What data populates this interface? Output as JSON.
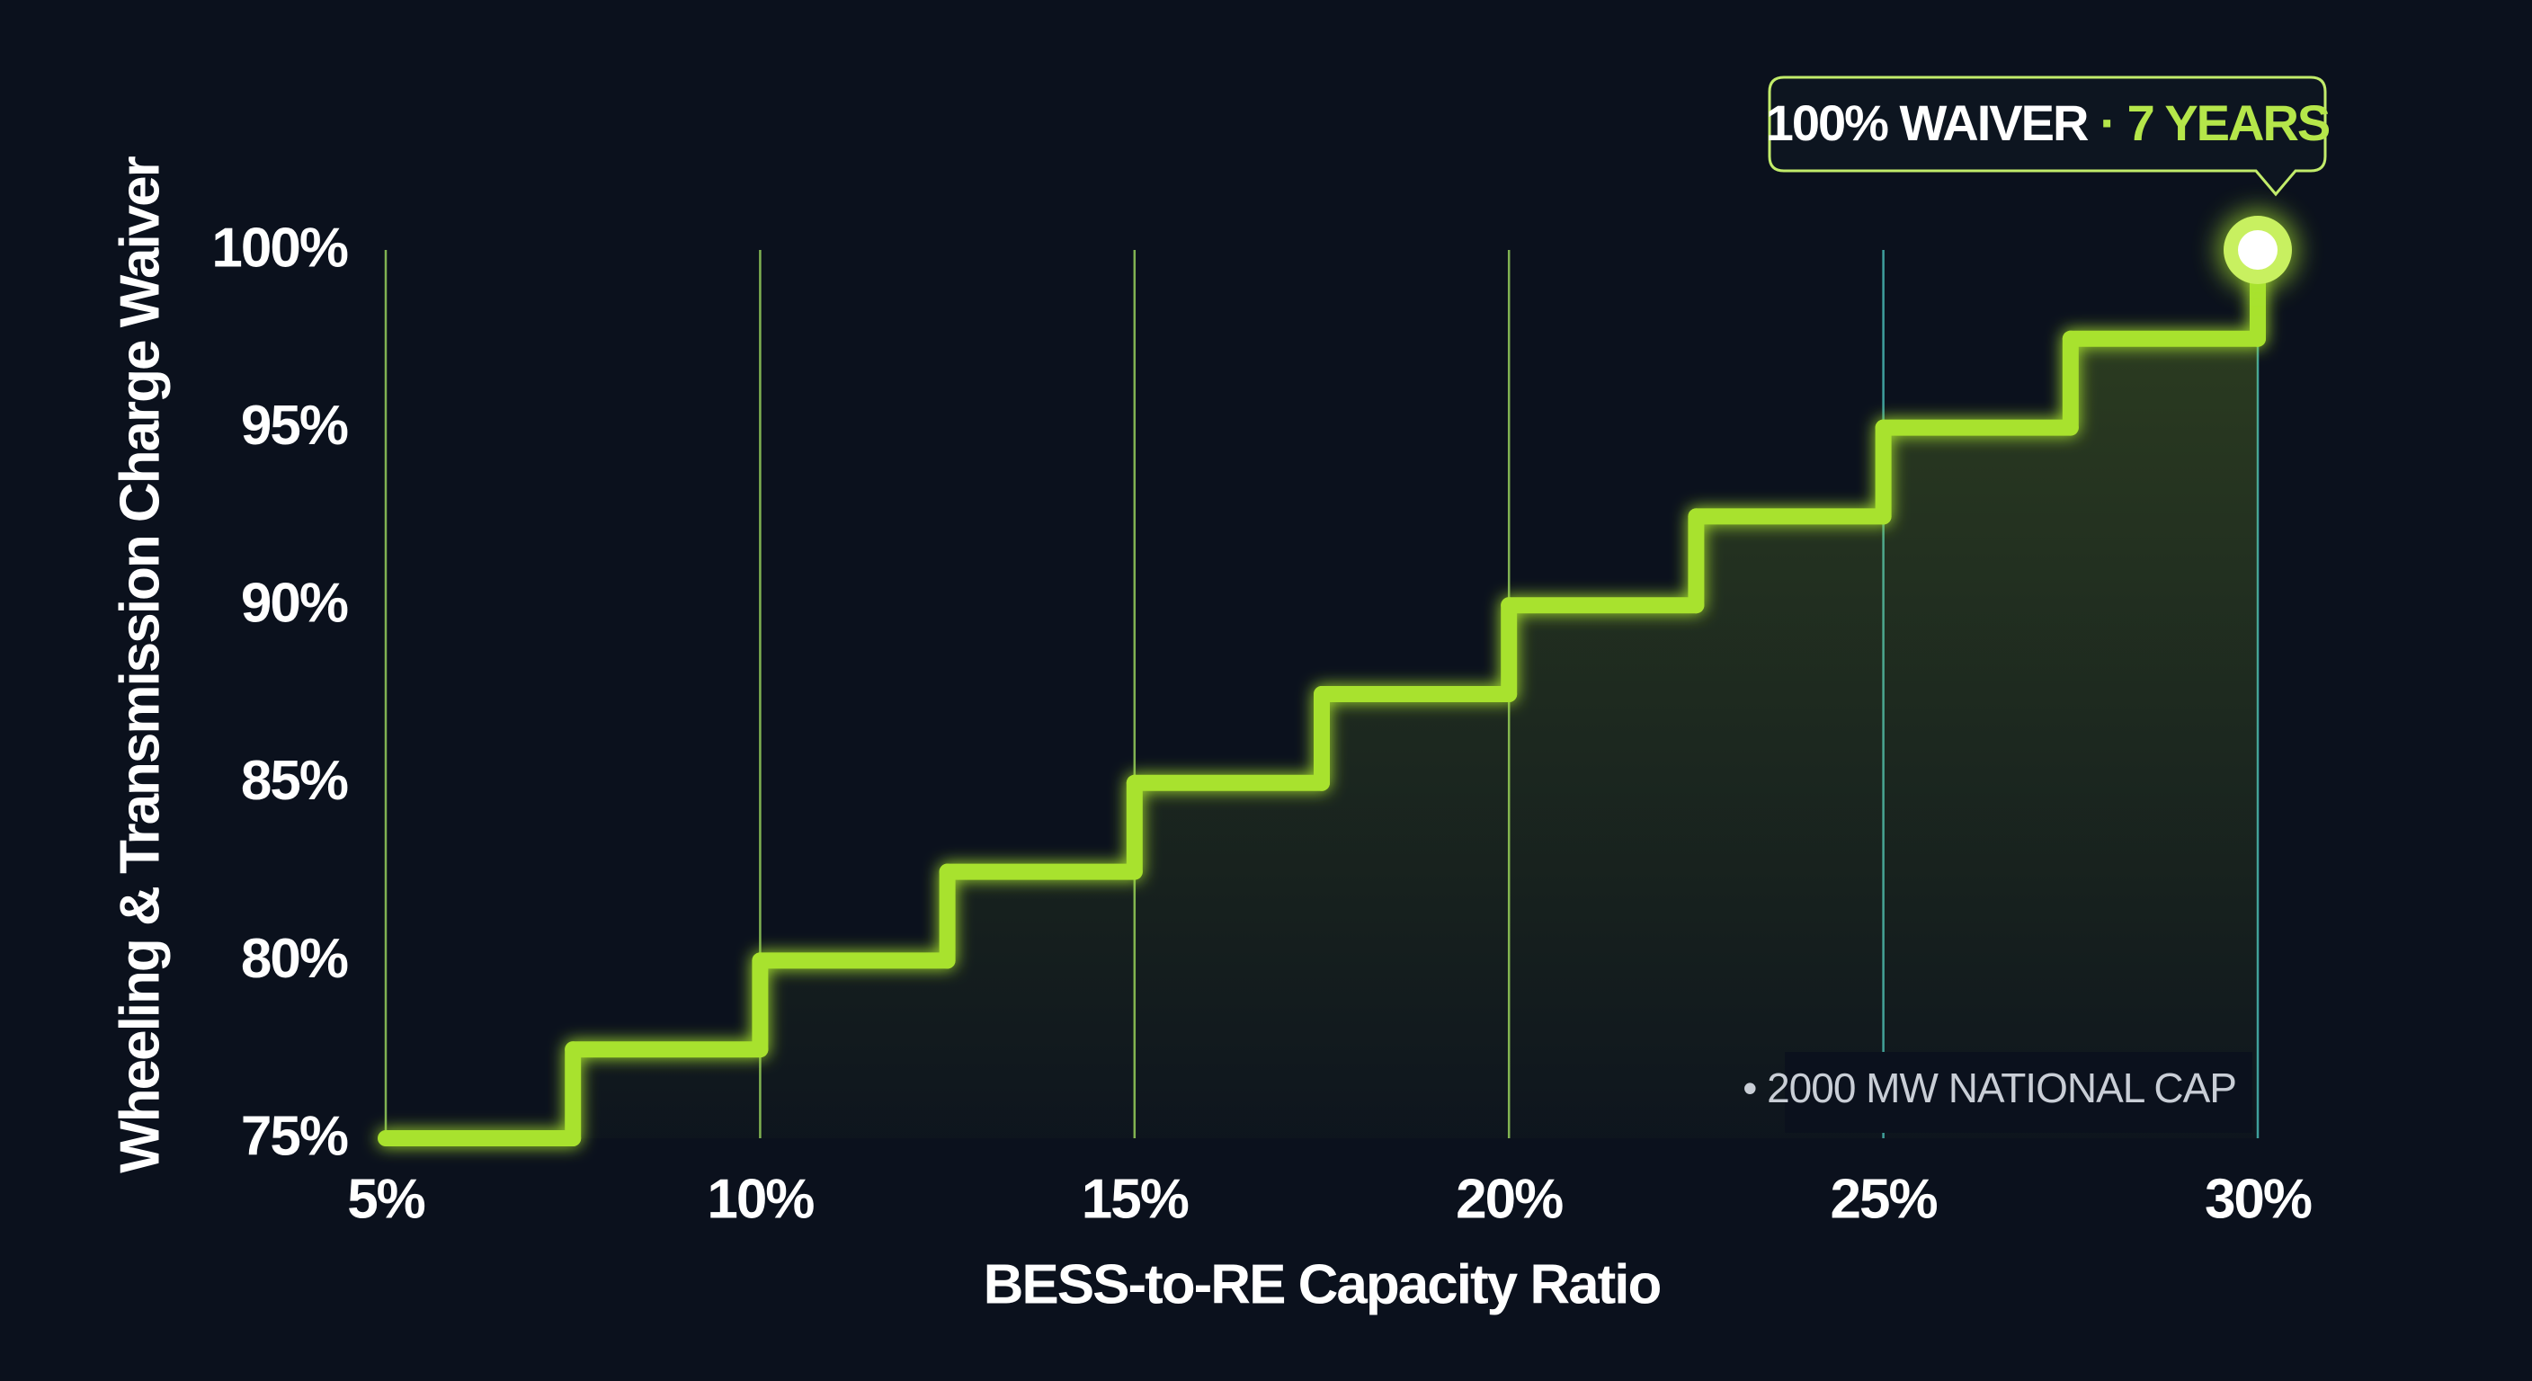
{
  "chart_data": {
    "type": "step",
    "xlabel": "BESS-to-RE Capacity Ratio",
    "ylabel": "Wheeling & Transmission Charge Waiver",
    "x": [
      5,
      7.5,
      10,
      12.5,
      15,
      17.5,
      20,
      22.5,
      25,
      27.5,
      30
    ],
    "values": [
      75,
      77.5,
      80,
      82.5,
      85,
      87.5,
      90,
      92.5,
      95,
      97.5,
      100
    ],
    "color": "#a8e22f",
    "xlim": [
      5,
      30
    ],
    "ylim": [
      75,
      100
    ],
    "xticks": [
      {
        "value": 5,
        "label": "5%"
      },
      {
        "value": 10,
        "label": "10%"
      },
      {
        "value": 15,
        "label": "15%"
      },
      {
        "value": 20,
        "label": "20%"
      },
      {
        "value": 25,
        "label": "25%"
      },
      {
        "value": 30,
        "label": "30%"
      }
    ],
    "yticks": [
      {
        "value": 75,
        "label": "75%"
      },
      {
        "value": 80,
        "label": "80%"
      },
      {
        "value": 85,
        "label": "85%"
      },
      {
        "value": 90,
        "label": "90%"
      },
      {
        "value": 95,
        "label": "95%"
      },
      {
        "value": 100,
        "label": "100%"
      }
    ],
    "grid": true,
    "annotation": {
      "text": "100% WAIVER",
      "highlight": "· 7 YEARS"
    },
    "note": "• 2000 MW NATIONAL CAP"
  }
}
